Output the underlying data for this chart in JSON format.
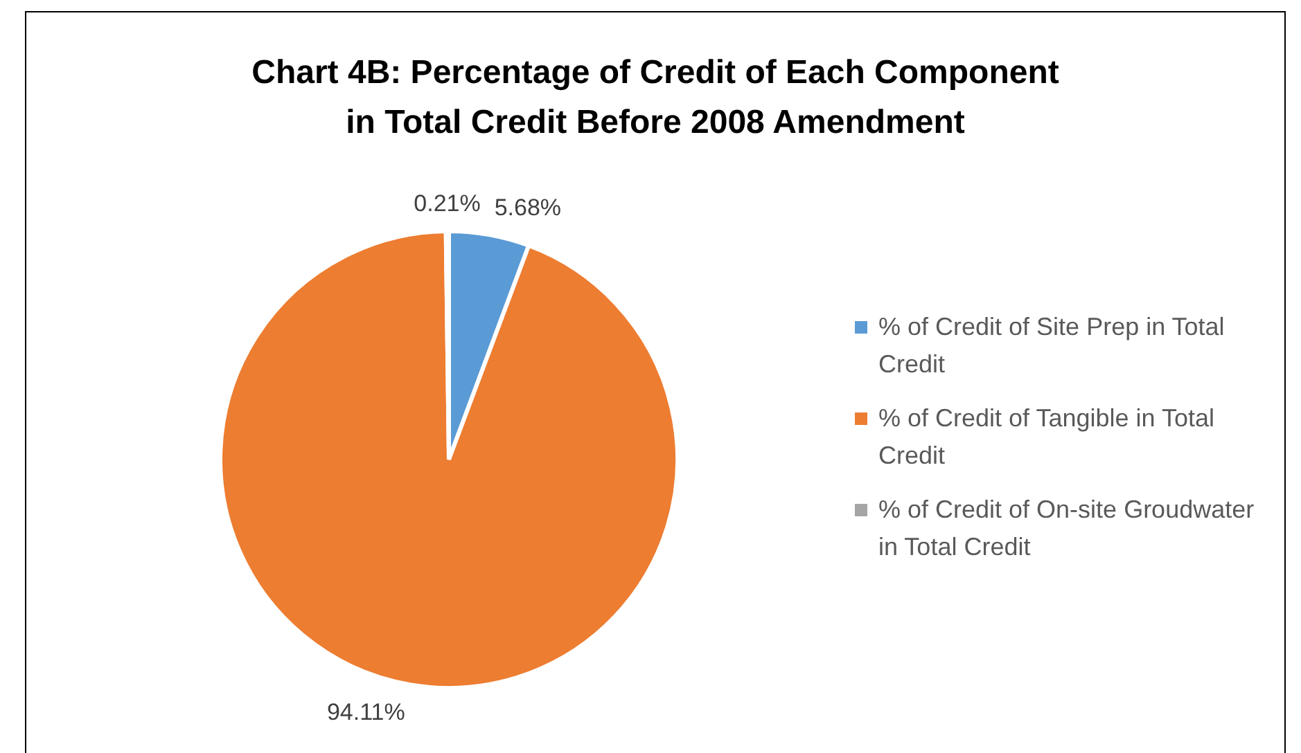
{
  "chart_data": {
    "type": "pie",
    "title": "Chart 4B: Percentage of Credit of Each Component in Total Credit Before 2008 Amendment",
    "categories": [
      "% of Credit of Site Prep in Total Credit",
      "% of Credit of Tangible in Total Credit",
      "% of Credit of On-site Groudwater in Total Credit"
    ],
    "values": [
      5.68,
      94.11,
      0.21
    ],
    "colors": [
      "#5b9bd5",
      "#ed7d31",
      "#a5a5a5"
    ],
    "value_labels": [
      "5.68%",
      "94.11%",
      "0.21%"
    ],
    "legend": "right"
  }
}
